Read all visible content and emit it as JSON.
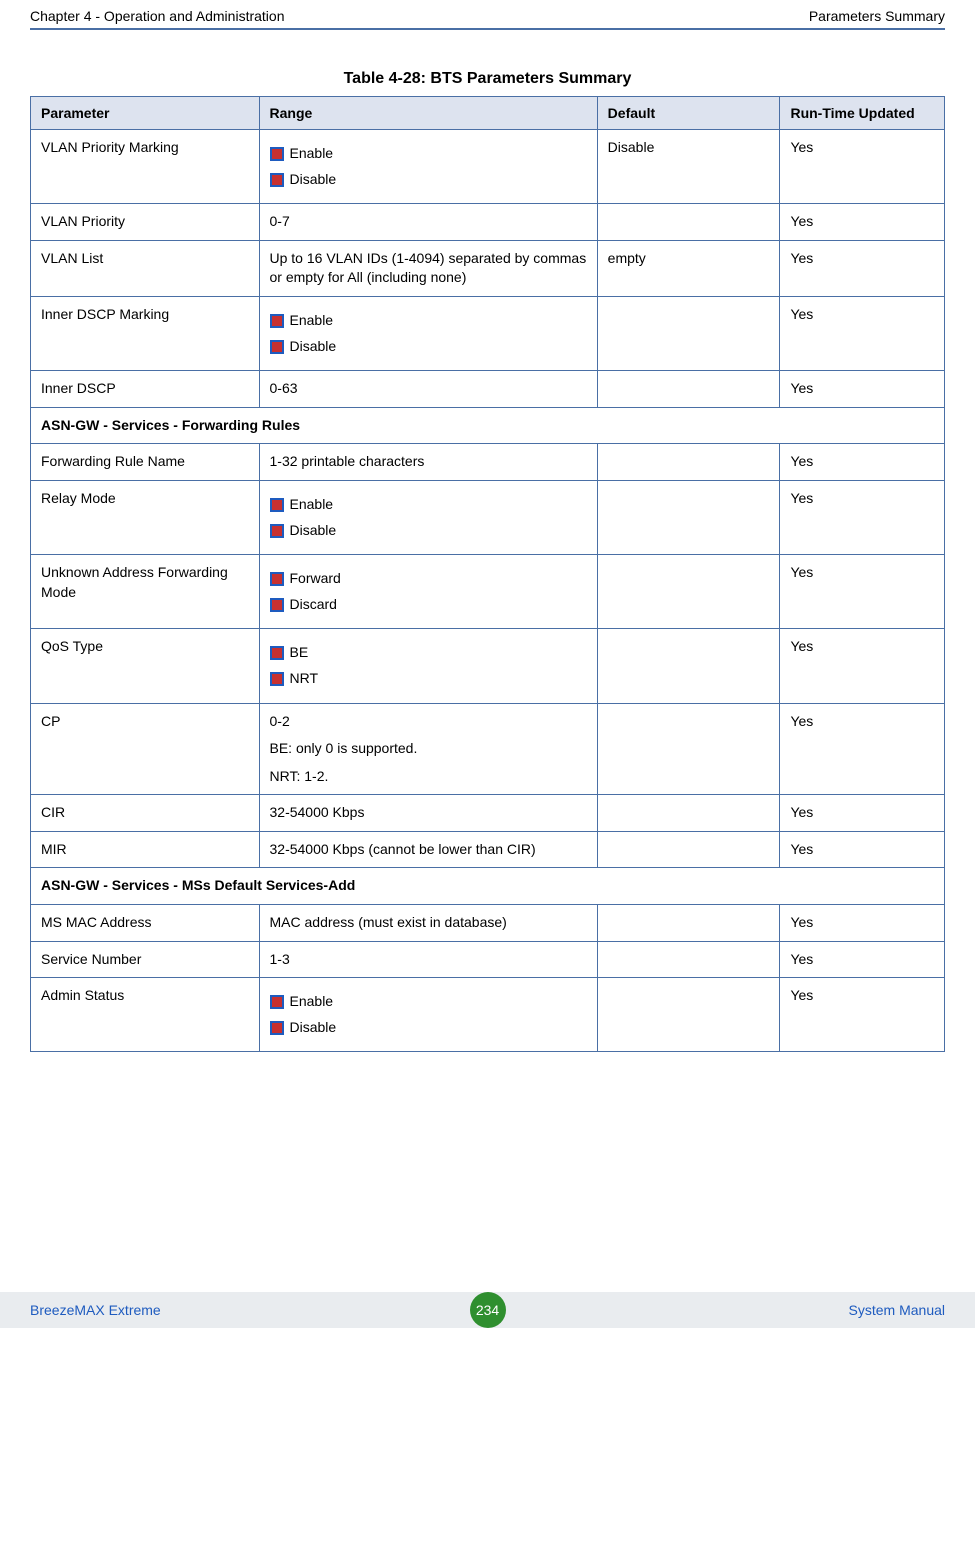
{
  "header": {
    "left": "Chapter 4 - Operation and Administration",
    "right": "Parameters Summary"
  },
  "table": {
    "caption": "Table 4-28: BTS Parameters Summary",
    "columns": {
      "param": "Parameter",
      "range": "Range",
      "default": "Default",
      "runtime": "Run-Time Updated"
    },
    "rows": {
      "vlan_priority_marking": {
        "param": "VLAN Priority Marking",
        "opt1": "Enable",
        "opt2": "Disable",
        "default": "Disable",
        "runtime": "Yes"
      },
      "vlan_priority": {
        "param": "VLAN Priority",
        "range": "0-7",
        "default": "",
        "runtime": "Yes"
      },
      "vlan_list": {
        "param": "VLAN List",
        "range": "Up to 16 VLAN IDs (1-4094) separated by commas or empty for All (including none)",
        "default": "empty",
        "runtime": "Yes"
      },
      "inner_dscp_marking": {
        "param": "Inner DSCP Marking",
        "opt1": "Enable",
        "opt2": "Disable",
        "default": "",
        "runtime": "Yes"
      },
      "inner_dscp": {
        "param": "Inner DSCP",
        "range": "0-63",
        "default": "",
        "runtime": "Yes"
      },
      "section_forwarding_rules": {
        "title": "ASN-GW - Services - Forwarding Rules"
      },
      "forwarding_rule_name": {
        "param": "Forwarding Rule Name",
        "range": "1-32 printable characters",
        "default": "",
        "runtime": "Yes"
      },
      "relay_mode": {
        "param": "Relay Mode",
        "opt1": "Enable",
        "opt2": "Disable",
        "default": "",
        "runtime": "Yes"
      },
      "unknown_address_forwarding_mode": {
        "param": "Unknown Address Forwarding Mode",
        "opt1": "Forward",
        "opt2": "Discard",
        "default": "",
        "runtime": "Yes"
      },
      "qos_type": {
        "param": "QoS Type",
        "opt1": "BE",
        "opt2": "NRT",
        "default": "",
        "runtime": "Yes"
      },
      "cp": {
        "param": "CP",
        "line1": "0-2",
        "line2": "BE: only 0 is supported.",
        "line3": "NRT: 1-2.",
        "default": "",
        "runtime": "Yes"
      },
      "cir": {
        "param": "CIR",
        "range": "32-54000 Kbps",
        "default": "",
        "runtime": "Yes"
      },
      "mir": {
        "param": "MIR",
        "range": "32-54000 Kbps (cannot be lower than CIR)",
        "default": "",
        "runtime": "Yes"
      },
      "section_mss_default_services_add": {
        "title": "ASN-GW - Services - MSs Default Services-Add"
      },
      "ms_mac_address": {
        "param": "MS MAC Address",
        "range": "MAC address (must exist in database)",
        "default": "",
        "runtime": "Yes"
      },
      "service_number": {
        "param": "Service Number",
        "range": "1-3",
        "default": "",
        "runtime": "Yes"
      },
      "admin_status": {
        "param": "Admin Status",
        "opt1": "Enable",
        "opt2": "Disable",
        "default": "",
        "runtime": "Yes"
      }
    }
  },
  "footer": {
    "left": "BreezeMAX Extreme",
    "page": "234",
    "right": "System Manual"
  },
  "colors": {
    "rule": "#4a6fa5",
    "th_bg": "#dde3ef",
    "bullet_border": "#1e5bbf",
    "bullet_fill": "#c73030",
    "footer_bg": "#e9ecef",
    "footer_text": "#1e5bbf",
    "badge_bg": "#2f8f2f"
  }
}
